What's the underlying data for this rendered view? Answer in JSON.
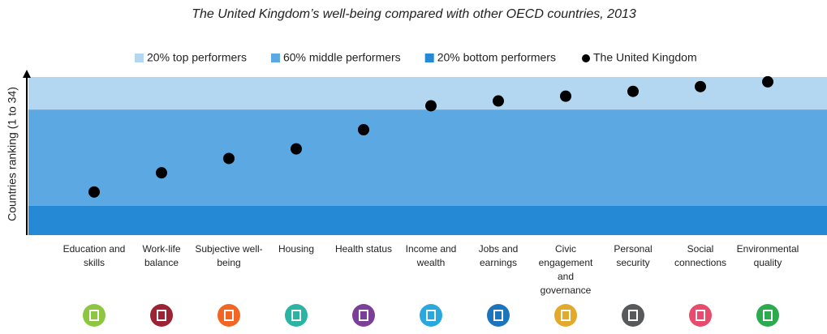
{
  "chart_data": {
    "type": "dot",
    "title": "The United Kingdom’s well-being compared with other OECD countries, 2013",
    "y_label": "Countries ranking (1 to 34)",
    "ylim": [
      34,
      1
    ],
    "bands": [
      {
        "name": "20% top performers",
        "color": "#b3d7f1",
        "from": 1,
        "to": 7.8
      },
      {
        "name": "60% middle performers",
        "color": "#5ba8e3",
        "from": 7.8,
        "to": 27.9
      },
      {
        "name": "20% bottom performers",
        "color": "#2589d6",
        "from": 27.9,
        "to": 34
      }
    ],
    "categories": [
      "Education and skills",
      "Work-life balance",
      "Subjective well-being",
      "Housing",
      "Health status",
      "Income and wealth",
      "Jobs and earnings",
      "Civic engagement and governance",
      "Personal security",
      "Social connections",
      "Environmental quality"
    ],
    "series": [
      {
        "name": "The United Kingdom",
        "color": "#000000",
        "values": [
          25,
          21,
          18,
          16,
          12,
          7,
          6,
          5,
          4,
          3,
          2
        ]
      }
    ]
  }
}
